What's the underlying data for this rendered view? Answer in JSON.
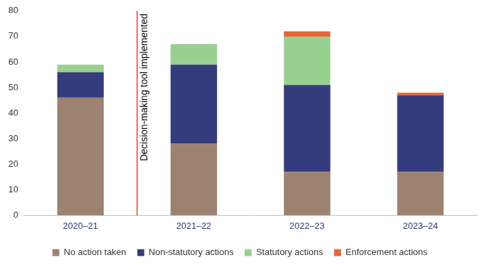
{
  "chart_data": {
    "type": "bar",
    "stacked": true,
    "categories": [
      "2020–21",
      "2021–22",
      "2022–23",
      "2023–24"
    ],
    "series": [
      {
        "name": "No action taken",
        "color": "#9c8270",
        "values": [
          46,
          28,
          17,
          17
        ]
      },
      {
        "name": "Non-statutory actions",
        "color": "#353c7d",
        "values": [
          10,
          31,
          34,
          30
        ]
      },
      {
        "name": "Statutory actions",
        "color": "#98d18f",
        "values": [
          3,
          8,
          19,
          0
        ]
      },
      {
        "name": "Enforcement actions",
        "color": "#e8653a",
        "values": [
          0,
          0,
          2,
          1
        ]
      }
    ],
    "ylim": [
      0,
      80
    ],
    "yticks": [
      0,
      10,
      20,
      30,
      40,
      50,
      60,
      70,
      80
    ],
    "grid": false,
    "legend": "bottom",
    "annotations": [
      {
        "text": "Decision-making tool implemented",
        "after_category": "2020–21",
        "color": "#d9431e"
      }
    ]
  }
}
